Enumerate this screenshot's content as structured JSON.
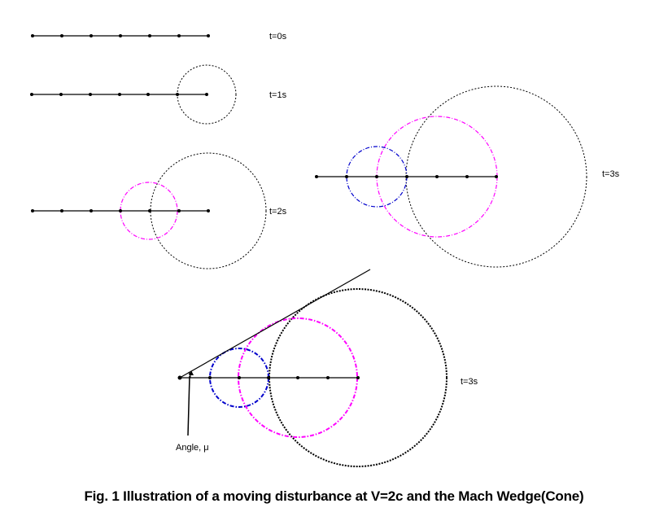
{
  "time_labels": {
    "t0": "t=0s",
    "t1": "t=1s",
    "t2": "t=2s",
    "t3": "t=3s",
    "t3_wedge": "t=3s"
  },
  "angle_label": "Angle, μ",
  "caption": "Fig. 1 Illustration of a moving disturbance at V=2c and the Mach Wedge(Cone)",
  "colors": {
    "line": "#000000",
    "circle_1s": "#000000",
    "circle_2s": "#ff00ff",
    "circle_3s": "#0000cc"
  }
}
